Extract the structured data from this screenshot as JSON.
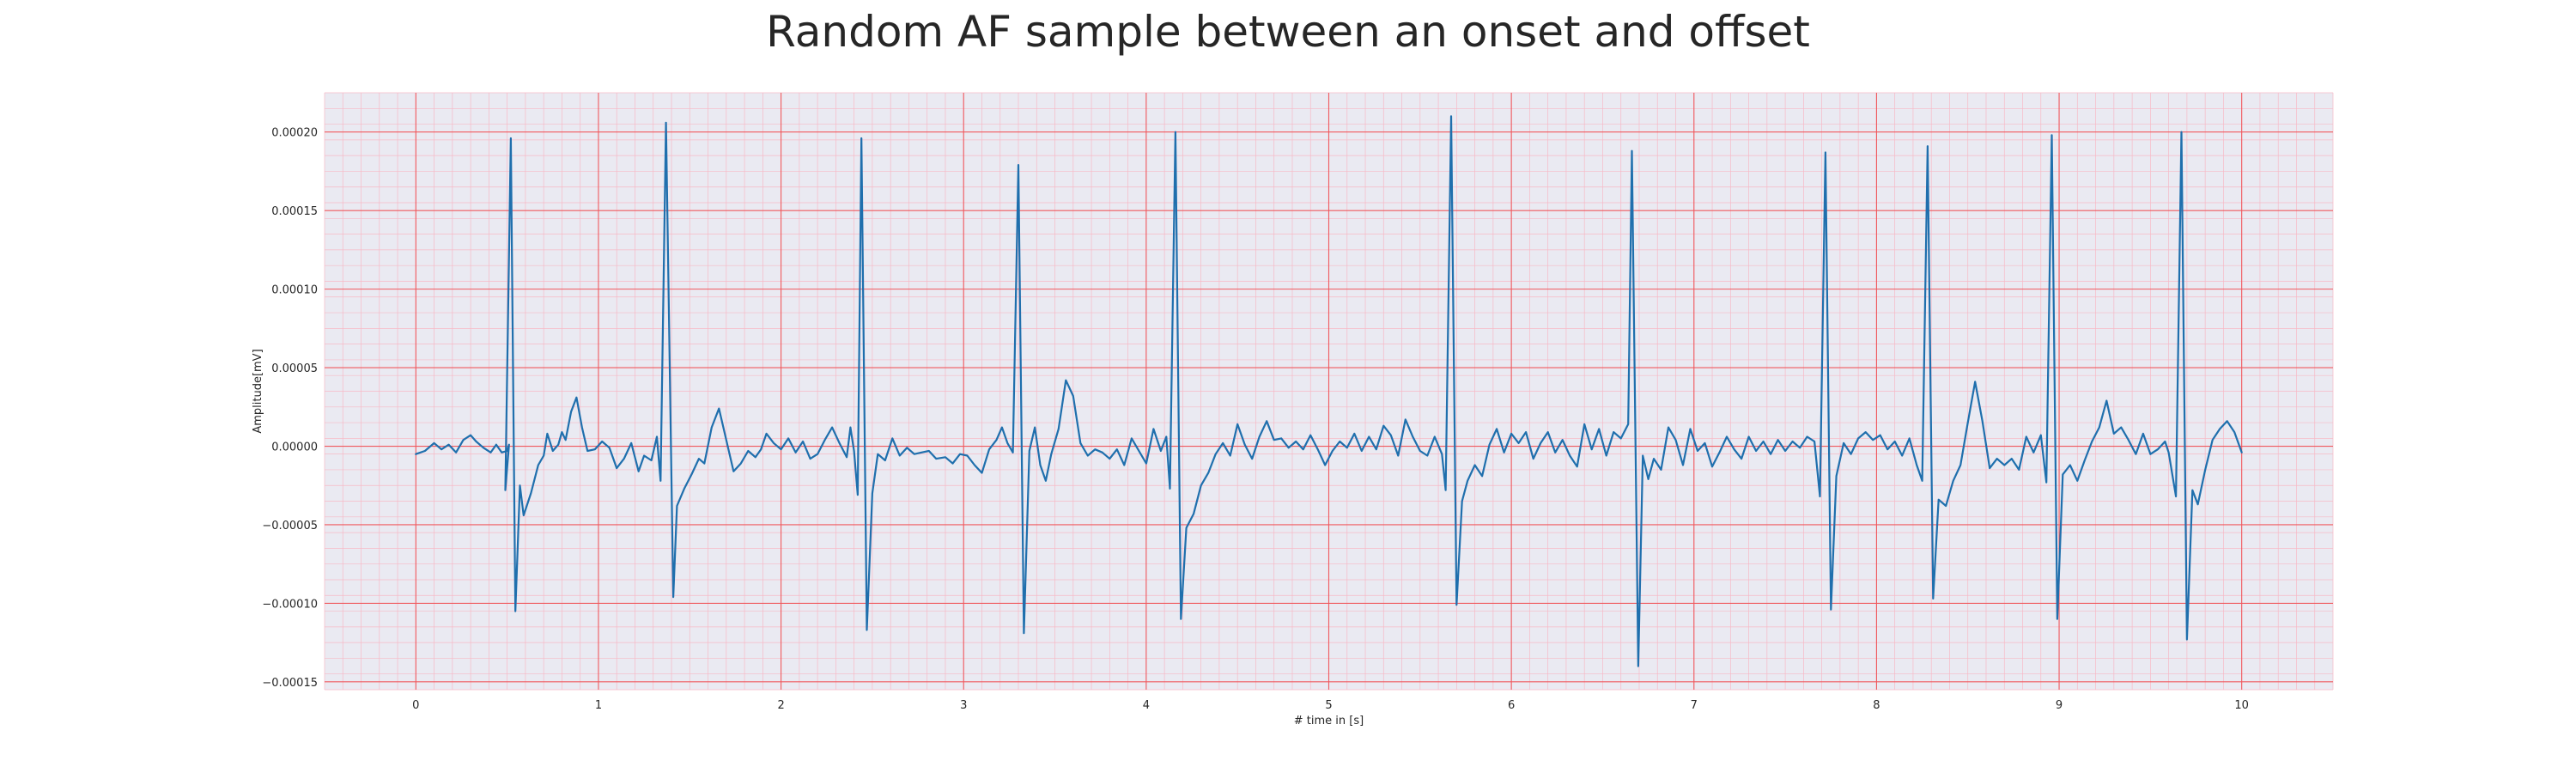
{
  "chart_data": {
    "type": "line",
    "title": "Random AF sample between an onset and offset",
    "xlabel": "# time in [s]",
    "ylabel": "Amplitude[mV]",
    "xlim": [
      -0.5,
      10.5
    ],
    "ylim": [
      -0.000155,
      0.000225
    ],
    "x_ticks": [
      0,
      1,
      2,
      3,
      4,
      5,
      6,
      7,
      8,
      9,
      10
    ],
    "x_tick_labels": [
      "0",
      "1",
      "2",
      "3",
      "4",
      "5",
      "6",
      "7",
      "8",
      "9",
      "10"
    ],
    "y_ticks": [
      -0.00015,
      -0.0001,
      -5e-05,
      0,
      5e-05,
      0.0001,
      0.00015,
      0.0002
    ],
    "y_tick_labels": [
      "−0.00015",
      "−0.00010",
      "−0.00005",
      "0.00000",
      "0.00005",
      "0.00010",
      "0.00015",
      "0.00020"
    ],
    "grid": true,
    "minor_grid": true,
    "colors": {
      "background": "#eaeaf2",
      "major_grid": "#f0595e",
      "minor_grid": "#f7b9c6",
      "line": "#1f6fad"
    },
    "series": [
      {
        "values": [
          [
            0.0,
            -5e-06
          ],
          [
            0.05,
            -3e-06
          ],
          [
            0.1,
            2e-06
          ],
          [
            0.14,
            -2e-06
          ],
          [
            0.18,
            1e-06
          ],
          [
            0.22,
            -4e-06
          ],
          [
            0.26,
            4e-06
          ],
          [
            0.3,
            7e-06
          ],
          [
            0.33,
            3e-06
          ],
          [
            0.37,
            -1e-06
          ],
          [
            0.41,
            -4e-06
          ],
          [
            0.44,
            1e-06
          ],
          [
            0.47,
            -4e-06
          ],
          [
            0.5,
            -3e-06
          ],
          [
            0.51,
            1e-06
          ],
          [
            0.49,
            -2.8e-05
          ],
          [
            0.52,
            0.000196
          ],
          [
            0.545,
            -0.000105
          ],
          [
            0.57,
            -2.5e-05
          ],
          [
            0.59,
            -4.4e-05
          ],
          [
            0.63,
            -3e-05
          ],
          [
            0.67,
            -1.2e-05
          ],
          [
            0.7,
            -6e-06
          ],
          [
            0.72,
            8e-06
          ],
          [
            0.75,
            -3e-06
          ],
          [
            0.78,
            1e-06
          ],
          [
            0.8,
            9e-06
          ],
          [
            0.82,
            4e-06
          ],
          [
            0.85,
            2.2e-05
          ],
          [
            0.88,
            3.1e-05
          ],
          [
            0.91,
            1.2e-05
          ],
          [
            0.94,
            -3e-06
          ],
          [
            0.98,
            -2e-06
          ],
          [
            1.02,
            3e-06
          ],
          [
            1.06,
            -1e-06
          ],
          [
            1.1,
            -1.4e-05
          ],
          [
            1.14,
            -8e-06
          ],
          [
            1.18,
            2e-06
          ],
          [
            1.22,
            -1.6e-05
          ],
          [
            1.25,
            -6e-06
          ],
          [
            1.29,
            -9e-06
          ],
          [
            1.32,
            6e-06
          ],
          [
            1.34,
            -2.2e-05
          ],
          [
            1.37,
            0.000206
          ],
          [
            1.41,
            -9.6e-05
          ],
          [
            1.43,
            -3.8e-05
          ],
          [
            1.47,
            -2.7e-05
          ],
          [
            1.51,
            -1.8e-05
          ],
          [
            1.55,
            -8e-06
          ],
          [
            1.58,
            -1.1e-05
          ],
          [
            1.62,
            1.2e-05
          ],
          [
            1.66,
            2.4e-05
          ],
          [
            1.7,
            4e-06
          ],
          [
            1.74,
            -1.6e-05
          ],
          [
            1.78,
            -1.1e-05
          ],
          [
            1.82,
            -3e-06
          ],
          [
            1.86,
            -7e-06
          ],
          [
            1.89,
            -2e-06
          ],
          [
            1.92,
            8e-06
          ],
          [
            1.96,
            2e-06
          ],
          [
            2.0,
            -2e-06
          ],
          [
            2.04,
            5e-06
          ],
          [
            2.08,
            -4e-06
          ],
          [
            2.12,
            3e-06
          ],
          [
            2.16,
            -8e-06
          ],
          [
            2.2,
            -5e-06
          ],
          [
            2.24,
            4e-06
          ],
          [
            2.28,
            1.2e-05
          ],
          [
            2.32,
            2e-06
          ],
          [
            2.36,
            -7e-06
          ],
          [
            2.38,
            1.2e-05
          ],
          [
            2.4,
            -3e-06
          ],
          [
            2.42,
            -3.1e-05
          ],
          [
            2.44,
            0.000196
          ],
          [
            2.47,
            -0.000117
          ],
          [
            2.5,
            -3e-05
          ],
          [
            2.53,
            -5e-06
          ],
          [
            2.57,
            -9e-06
          ],
          [
            2.61,
            5e-06
          ],
          [
            2.65,
            -6e-06
          ],
          [
            2.69,
            -1e-06
          ],
          [
            2.73,
            -5e-06
          ],
          [
            2.77,
            -4e-06
          ],
          [
            2.81,
            -3e-06
          ],
          [
            2.85,
            -8e-06
          ],
          [
            2.9,
            -7e-06
          ],
          [
            2.94,
            -1.1e-05
          ],
          [
            2.98,
            -5e-06
          ],
          [
            3.02,
            -6e-06
          ],
          [
            3.06,
            -1.2e-05
          ],
          [
            3.1,
            -1.7e-05
          ],
          [
            3.14,
            -2e-06
          ],
          [
            3.18,
            4e-06
          ],
          [
            3.21,
            1.2e-05
          ],
          [
            3.24,
            2e-06
          ],
          [
            3.27,
            -4e-06
          ],
          [
            3.3,
            0.000179
          ],
          [
            3.33,
            -0.000119
          ],
          [
            3.36,
            -3e-06
          ],
          [
            3.39,
            1.2e-05
          ],
          [
            3.42,
            -1.2e-05
          ],
          [
            3.45,
            -2.2e-05
          ],
          [
            3.48,
            -5e-06
          ],
          [
            3.52,
            1.1e-05
          ],
          [
            3.56,
            4.2e-05
          ],
          [
            3.6,
            3.2e-05
          ],
          [
            3.64,
            2e-06
          ],
          [
            3.68,
            -6e-06
          ],
          [
            3.72,
            -2e-06
          ],
          [
            3.76,
            -4e-06
          ],
          [
            3.8,
            -8e-06
          ],
          [
            3.84,
            -2e-06
          ],
          [
            3.88,
            -1.2e-05
          ],
          [
            3.92,
            5e-06
          ],
          [
            3.96,
            -3e-06
          ],
          [
            4.0,
            -1.1e-05
          ],
          [
            4.04,
            1.1e-05
          ],
          [
            4.08,
            -3e-06
          ],
          [
            4.11,
            6e-06
          ],
          [
            4.13,
            -2.7e-05
          ],
          [
            4.16,
            0.0002
          ],
          [
            4.19,
            -0.00011
          ],
          [
            4.22,
            -5.2e-05
          ],
          [
            4.26,
            -4.3e-05
          ],
          [
            4.3,
            -2.5e-05
          ],
          [
            4.34,
            -1.7e-05
          ],
          [
            4.38,
            -5e-06
          ],
          [
            4.42,
            2e-06
          ],
          [
            4.46,
            -6e-06
          ],
          [
            4.5,
            1.4e-05
          ],
          [
            4.54,
            1e-06
          ],
          [
            4.58,
            -8e-06
          ],
          [
            4.62,
            6e-06
          ],
          [
            4.66,
            1.6e-05
          ],
          [
            4.7,
            4e-06
          ],
          [
            4.74,
            5e-06
          ],
          [
            4.78,
            -1e-06
          ],
          [
            4.82,
            3e-06
          ],
          [
            4.86,
            -2e-06
          ],
          [
            4.9,
            7e-06
          ],
          [
            4.94,
            -2e-06
          ],
          [
            4.98,
            -1.2e-05
          ],
          [
            5.02,
            -3e-06
          ],
          [
            5.06,
            3e-06
          ],
          [
            5.1,
            -1e-06
          ],
          [
            5.14,
            8e-06
          ],
          [
            5.18,
            -3e-06
          ],
          [
            5.22,
            6e-06
          ],
          [
            5.26,
            -2e-06
          ],
          [
            5.3,
            1.3e-05
          ],
          [
            5.34,
            7e-06
          ],
          [
            5.38,
            -6e-06
          ],
          [
            5.42,
            1.7e-05
          ],
          [
            5.46,
            6e-06
          ],
          [
            5.5,
            -3e-06
          ],
          [
            5.54,
            -6e-06
          ],
          [
            5.58,
            6e-06
          ],
          [
            5.62,
            -5e-06
          ],
          [
            5.64,
            -2.8e-05
          ],
          [
            5.67,
            0.00021
          ],
          [
            5.7,
            -0.000101
          ],
          [
            5.73,
            -3.5e-05
          ],
          [
            5.76,
            -2.2e-05
          ],
          [
            5.8,
            -1.2e-05
          ],
          [
            5.84,
            -1.9e-05
          ],
          [
            5.88,
            1e-06
          ],
          [
            5.92,
            1.1e-05
          ],
          [
            5.96,
            -4e-06
          ],
          [
            6.0,
            8e-06
          ],
          [
            6.04,
            2e-06
          ],
          [
            6.08,
            9e-06
          ],
          [
            6.12,
            -8e-06
          ],
          [
            6.16,
            2e-06
          ],
          [
            6.2,
            9e-06
          ],
          [
            6.24,
            -4e-06
          ],
          [
            6.28,
            4e-06
          ],
          [
            6.32,
            -6e-06
          ],
          [
            6.36,
            -1.3e-05
          ],
          [
            6.4,
            1.4e-05
          ],
          [
            6.44,
            -2e-06
          ],
          [
            6.48,
            1.1e-05
          ],
          [
            6.52,
            -6e-06
          ],
          [
            6.56,
            9e-06
          ],
          [
            6.6,
            5e-06
          ],
          [
            6.64,
            1.4e-05
          ],
          [
            6.66,
            0.000188
          ],
          [
            6.695,
            -0.00014
          ],
          [
            6.72,
            -6e-06
          ],
          [
            6.75,
            -2.1e-05
          ],
          [
            6.78,
            -8e-06
          ],
          [
            6.82,
            -1.5e-05
          ],
          [
            6.86,
            1.2e-05
          ],
          [
            6.9,
            4e-06
          ],
          [
            6.94,
            -1.2e-05
          ],
          [
            6.98,
            1.1e-05
          ],
          [
            7.02,
            -3e-06
          ],
          [
            7.06,
            2e-06
          ],
          [
            7.1,
            -1.3e-05
          ],
          [
            7.14,
            -4e-06
          ],
          [
            7.18,
            6e-06
          ],
          [
            7.22,
            -2e-06
          ],
          [
            7.26,
            -8e-06
          ],
          [
            7.3,
            6e-06
          ],
          [
            7.34,
            -3e-06
          ],
          [
            7.38,
            3e-06
          ],
          [
            7.42,
            -5e-06
          ],
          [
            7.46,
            4e-06
          ],
          [
            7.5,
            -3e-06
          ],
          [
            7.54,
            3e-06
          ],
          [
            7.58,
            -1e-06
          ],
          [
            7.62,
            6e-06
          ],
          [
            7.66,
            3e-06
          ],
          [
            7.69,
            -3.2e-05
          ],
          [
            7.72,
            0.000187
          ],
          [
            7.75,
            -0.000104
          ],
          [
            7.78,
            -1.9e-05
          ],
          [
            7.82,
            2e-06
          ],
          [
            7.86,
            -5e-06
          ],
          [
            7.9,
            5e-06
          ],
          [
            7.94,
            9e-06
          ],
          [
            7.98,
            4e-06
          ],
          [
            8.02,
            7e-06
          ],
          [
            8.06,
            -2e-06
          ],
          [
            8.1,
            3e-06
          ],
          [
            8.14,
            -6e-06
          ],
          [
            8.18,
            5e-06
          ],
          [
            8.22,
            -1.2e-05
          ],
          [
            8.25,
            -2.2e-05
          ],
          [
            8.28,
            0.000191
          ],
          [
            8.31,
            -9.7e-05
          ],
          [
            8.34,
            -3.4e-05
          ],
          [
            8.38,
            -3.8e-05
          ],
          [
            8.42,
            -2.2e-05
          ],
          [
            8.46,
            -1.2e-05
          ],
          [
            8.5,
            1.5e-05
          ],
          [
            8.54,
            4.1e-05
          ],
          [
            8.58,
            1.6e-05
          ],
          [
            8.62,
            -1.4e-05
          ],
          [
            8.66,
            -8e-06
          ],
          [
            8.7,
            -1.2e-05
          ],
          [
            8.74,
            -8e-06
          ],
          [
            8.78,
            -1.5e-05
          ],
          [
            8.82,
            6e-06
          ],
          [
            8.86,
            -4e-06
          ],
          [
            8.9,
            7e-06
          ],
          [
            8.93,
            -2.3e-05
          ],
          [
            8.96,
            0.000198
          ],
          [
            8.99,
            -0.00011
          ],
          [
            9.02,
            -1.8e-05
          ],
          [
            9.06,
            -1.2e-05
          ],
          [
            9.1,
            -2.2e-05
          ],
          [
            9.14,
            -9e-06
          ],
          [
            9.18,
            3e-06
          ],
          [
            9.22,
            1.2e-05
          ],
          [
            9.26,
            2.9e-05
          ],
          [
            9.3,
            8e-06
          ],
          [
            9.34,
            1.2e-05
          ],
          [
            9.38,
            4e-06
          ],
          [
            9.42,
            -5e-06
          ],
          [
            9.46,
            8e-06
          ],
          [
            9.5,
            -5e-06
          ],
          [
            9.54,
            -2e-06
          ],
          [
            9.58,
            3e-06
          ],
          [
            9.6,
            -4e-06
          ],
          [
            9.64,
            -3.2e-05
          ],
          [
            9.67,
            0.0002
          ],
          [
            9.7,
            -0.000123
          ],
          [
            9.73,
            -2.8e-05
          ],
          [
            9.76,
            -3.7e-05
          ],
          [
            9.8,
            -1.5e-05
          ],
          [
            9.84,
            4e-06
          ],
          [
            9.88,
            1.1e-05
          ],
          [
            9.92,
            1.6e-05
          ],
          [
            9.96,
            9e-06
          ],
          [
            10.0,
            -4e-06
          ]
        ]
      }
    ]
  }
}
